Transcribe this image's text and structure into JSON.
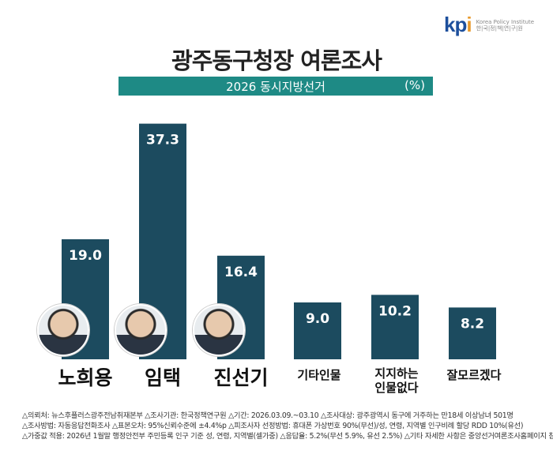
{
  "logo": {
    "mark": "kpi",
    "en": "Korea Policy Institute",
    "ko": "한|국|정|책|연|구|원"
  },
  "title": "광주동구청장 여론조사",
  "subtitle": "2026 동시지방선거",
  "unit": "(%)",
  "colors": {
    "bar": "#1c4b5f",
    "banner": "#1e8a85"
  },
  "chart_data": {
    "type": "bar",
    "title": "광주동구청장 여론조사",
    "subtitle": "2026 동시지방선거",
    "categories": [
      "노희용",
      "임택",
      "진선기",
      "기타인물",
      "지지하는 인물없다",
      "잘모르겠다"
    ],
    "values": [
      19.0,
      37.3,
      16.4,
      9.0,
      10.2,
      8.2
    ],
    "value_labels": [
      "19.0",
      "37.3",
      "16.4",
      "9.0",
      "10.2",
      "8.2"
    ],
    "ylim": [
      0,
      40
    ],
    "grid": false
  },
  "footer": [
    "△의뢰처: 뉴스후플러스광주전남취재본부  △조사기관: 한국정책연구원  △기간: 2026.03.09.~03.10  △조사대상: 광주광역시 동구에 거주하는  만18세 이상남녀 501명",
    "△조사방법: 자동응답전화조사   △표본오차: 95%신뢰수준에 ±4.4%p   △피조사자 선정방법: 휴대폰 가상번호 90%(무선)/성, 연령, 지역별 인구비례 할당 RDD 10%(유선)",
    "△가중값 적용: 2026년 1월말 행정안전부 주민등록 인구 기준 성, 연령, 지역별(셀가중)  △응답율: 5.2%(무선 5.9%, 유선 2.5%)  △기타 자세한 사항은 중앙선거여론조사홈페이지 참조"
  ]
}
